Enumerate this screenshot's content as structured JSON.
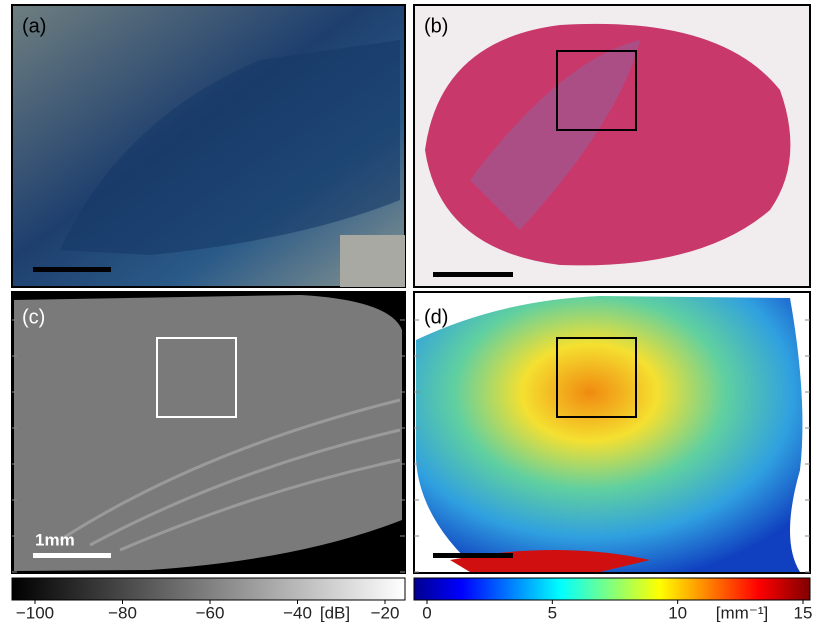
{
  "panels": [
    {
      "label": "(a)"
    },
    {
      "label": "(b)"
    },
    {
      "label": "(c)",
      "scale_bar": "1mm"
    },
    {
      "label": "(d)"
    }
  ],
  "colorbars": [
    {
      "lim": [
        -100,
        -20
      ],
      "ticks": [
        {
          "value": -100,
          "label": "−100"
        },
        {
          "value": -80,
          "label": "−80"
        },
        {
          "value": -60,
          "label": "−60"
        },
        {
          "value": -40,
          "label": "−40"
        },
        {
          "value": -20,
          "label": "−20"
        }
      ],
      "unit": "[dB]"
    },
    {
      "lim": [
        0,
        15
      ],
      "ticks": [
        0,
        5,
        10,
        15
      ],
      "unit": "[mm⁻¹]"
    }
  ]
}
